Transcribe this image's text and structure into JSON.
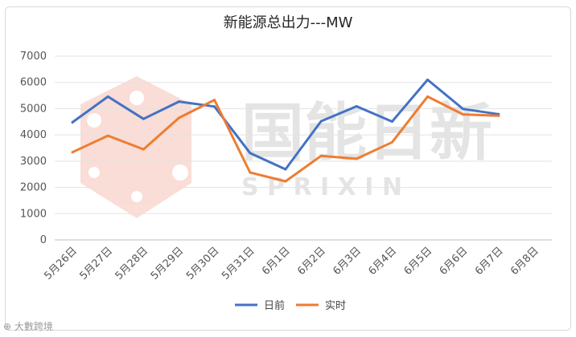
{
  "chart_data": {
    "type": "line",
    "title": "新能源总出力---MW",
    "categories": [
      "5月26日",
      "5月27日",
      "5月28日",
      "5月29日",
      "5月30日",
      "5月31日",
      "6月1日",
      "6月2日",
      "6月3日",
      "6月4日",
      "6月5日",
      "6月6日",
      "6月7日",
      "6月8日"
    ],
    "ylim": [
      0,
      7000
    ],
    "yticks": [
      0,
      1000,
      2000,
      3000,
      4000,
      5000,
      6000,
      7000
    ],
    "grid": true,
    "legend": "bottom",
    "series": [
      {
        "name": "日前",
        "color": "#4472c4",
        "values": [
          4480,
          5460,
          4610,
          5270,
          5080,
          3310,
          2690,
          4520,
          5090,
          4510,
          6100,
          4990,
          4790,
          null
        ]
      },
      {
        "name": "实时",
        "color": "#ed7d31",
        "values": [
          3340,
          3970,
          3450,
          4650,
          5330,
          2570,
          2230,
          3200,
          3090,
          3720,
          5460,
          4780,
          4730,
          null
        ]
      }
    ]
  },
  "watermark": {
    "text_cn": "国能日新",
    "text_en": "S P R I X I N"
  },
  "footer": {
    "logo_text": "⊕ 大數跨境"
  }
}
